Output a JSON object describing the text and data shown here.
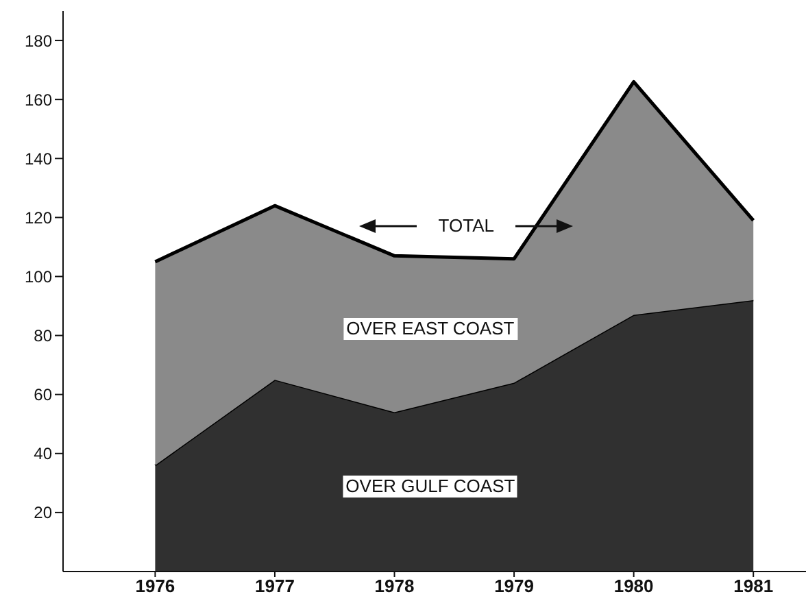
{
  "chart_data": {
    "type": "area",
    "stacked": true,
    "categories": [
      "1976",
      "1977",
      "1978",
      "1979",
      "1980",
      "1981"
    ],
    "series": [
      {
        "name": "OVER GULF COAST",
        "color": "#303030",
        "values": [
          36,
          65,
          54,
          64,
          87,
          92
        ]
      },
      {
        "name": "OVER EAST COAST",
        "color": "#8a8a8a",
        "values": [
          69,
          59,
          53,
          42,
          79,
          27
        ]
      }
    ],
    "ylim": [
      0,
      190
    ],
    "yticks": [
      20,
      40,
      60,
      80,
      100,
      120,
      140,
      160,
      180
    ],
    "annotations": [
      "TOTAL"
    ]
  }
}
